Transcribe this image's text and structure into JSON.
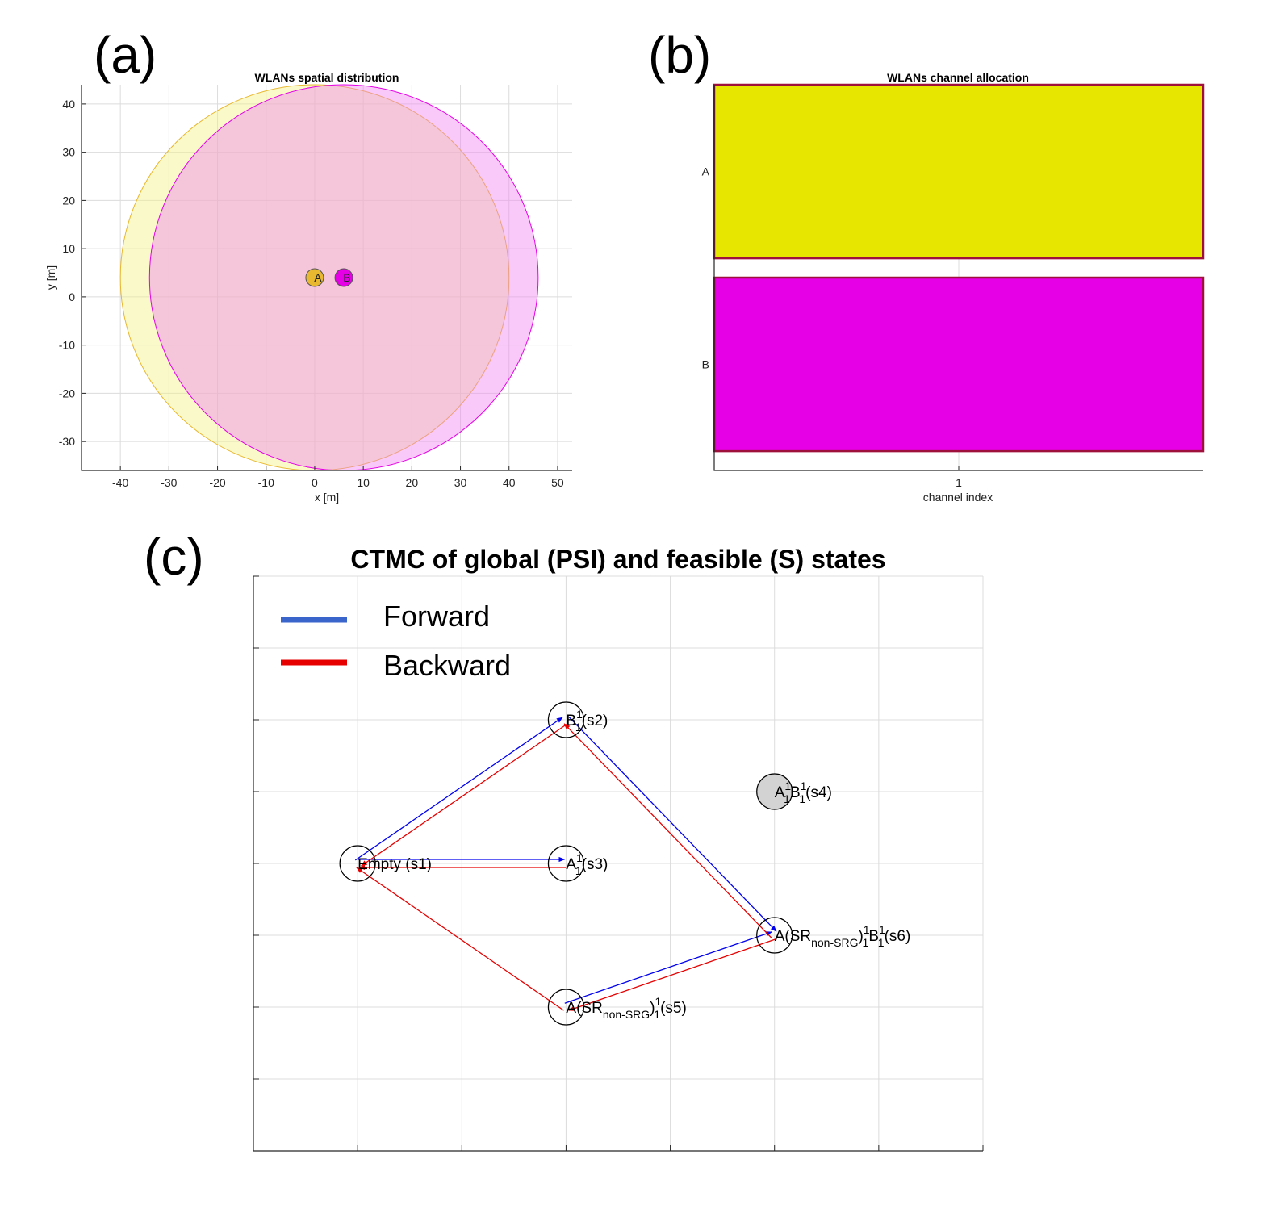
{
  "panels": {
    "a": "(a)",
    "b": "(b)",
    "c": "(c)"
  },
  "chart_data": [
    {
      "type": "scatter",
      "title": "WLANs spatial distribution",
      "xlabel": "x [m]",
      "ylabel": "y [m]",
      "xlim": [
        -48,
        53
      ],
      "ylim": [
        -36,
        44
      ],
      "xticks": [
        -40,
        -30,
        -20,
        -10,
        0,
        10,
        20,
        30,
        40,
        50
      ],
      "yticks": [
        -30,
        -20,
        -10,
        0,
        10,
        20,
        30,
        40
      ],
      "grid": true,
      "wlans": [
        {
          "name": "A",
          "x": 0,
          "y": 4,
          "coverage_radius": 40,
          "color": "#e8b830",
          "area_color": "#f0f080"
        },
        {
          "name": "B",
          "x": 6,
          "y": 4,
          "coverage_radius": 40,
          "color": "#e600e6",
          "area_color": "#f080f0"
        }
      ]
    },
    {
      "type": "bar",
      "title": "WLANs channel allocation",
      "xlabel": "channel index",
      "ylabel": "",
      "xticks": [
        "1"
      ],
      "categories": [
        "A",
        "B"
      ],
      "bars": [
        {
          "wlan": "A",
          "channel": 1,
          "color": "#e6e600",
          "edge_color": "#a0103c"
        },
        {
          "wlan": "B",
          "channel": 1,
          "color": "#e600e6",
          "edge_color": "#a0103c"
        }
      ]
    },
    {
      "type": "diagram",
      "title": "CTMC of global (PSI) and feasible (S) states",
      "xlim": [
        0,
        7
      ],
      "ylim": [
        0,
        8
      ],
      "grid": true,
      "legend": [
        {
          "label": "Forward",
          "color": "#3a66cc"
        },
        {
          "label": "Backward",
          "color": "#e60000"
        }
      ],
      "states": [
        {
          "id": "s1",
          "x": 1,
          "y": 4,
          "feasible": true,
          "label": "Empty (s1)"
        },
        {
          "id": "s2",
          "x": 3,
          "y": 6,
          "feasible": true,
          "base": "B",
          "sup": "1",
          "sub": "1",
          "tail": "(s2)"
        },
        {
          "id": "s3",
          "x": 3,
          "y": 4,
          "feasible": true,
          "base": "A",
          "sup": "1",
          "sub": "1",
          "tail": "(s3)"
        },
        {
          "id": "s4",
          "x": 5,
          "y": 5,
          "feasible": false,
          "parts": [
            "A",
            "1",
            "1",
            "B",
            "1",
            "1",
            "(s4)"
          ]
        },
        {
          "id": "s5",
          "x": 3,
          "y": 2,
          "feasible": true,
          "parts": [
            "A(SR",
            "non-SRG",
            ")",
            "1",
            "1",
            "(s5)"
          ]
        },
        {
          "id": "s6",
          "x": 5,
          "y": 3,
          "feasible": true,
          "parts": [
            "A(SR",
            "non-SRG",
            ")",
            "1",
            "1",
            "B",
            "1",
            "1",
            "(s6)"
          ]
        }
      ],
      "forward": [
        [
          "s1",
          "s2"
        ],
        [
          "s1",
          "s3"
        ],
        [
          "s2",
          "s6"
        ],
        [
          "s5",
          "s6"
        ]
      ],
      "backward": [
        [
          "s2",
          "s1"
        ],
        [
          "s3",
          "s1"
        ],
        [
          "s6",
          "s2"
        ],
        [
          "s6",
          "s5"
        ],
        [
          "s5",
          "s1"
        ]
      ],
      "colors": {
        "forward": "#0000ee",
        "backward": "#e60000",
        "infeasible_fill": "#d3d3d3"
      }
    }
  ]
}
